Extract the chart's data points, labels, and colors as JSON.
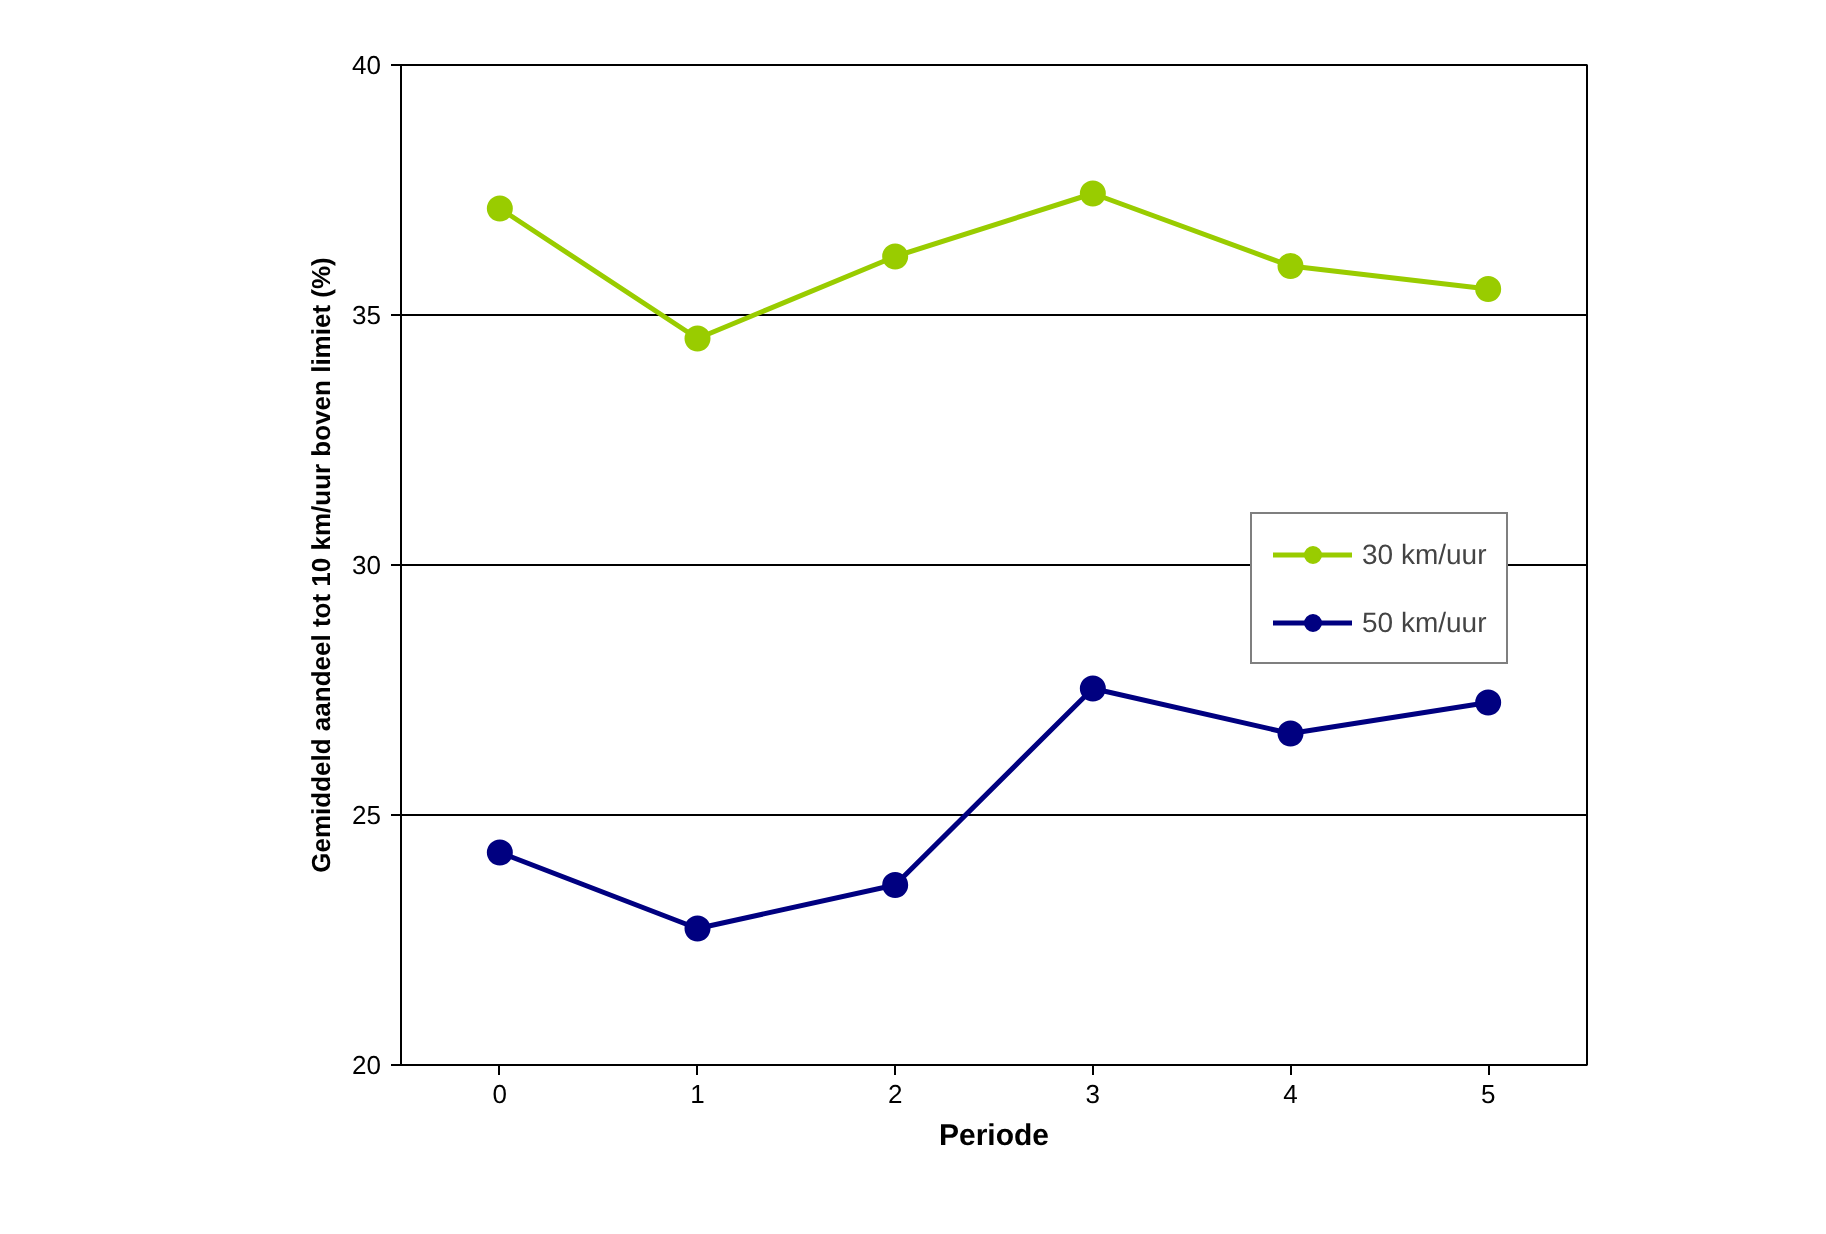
{
  "chart_data": {
    "type": "line",
    "xlabel": "Periode",
    "ylabel": "Gemiddeld aandeel tot 10 km/uur boven limiet (%)",
    "categories": [
      "0",
      "1",
      "2",
      "3",
      "4",
      "5"
    ],
    "series": [
      {
        "name": "30 km/uur",
        "color": "#99cc00",
        "values": [
          37.13,
          34.53,
          36.17,
          37.43,
          35.98,
          35.52
        ]
      },
      {
        "name": "50 km/uur",
        "color": "#000080",
        "values": [
          24.25,
          22.73,
          23.6,
          27.53,
          26.63,
          27.25
        ]
      }
    ],
    "ylim": [
      20,
      40
    ],
    "yticks": [
      20,
      25,
      30,
      35,
      40
    ],
    "grid": "y",
    "legend": "right",
    "marker": "circle",
    "line_style": "solid"
  }
}
